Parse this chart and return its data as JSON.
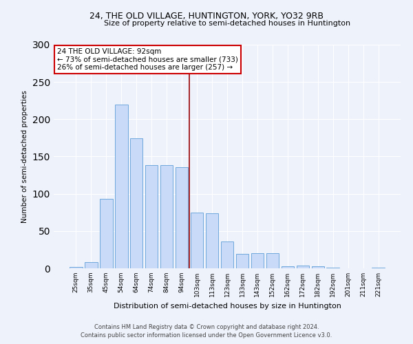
{
  "title": "24, THE OLD VILLAGE, HUNTINGTON, YORK, YO32 9RB",
  "subtitle": "Size of property relative to semi-detached houses in Huntington",
  "xlabel": "Distribution of semi-detached houses by size in Huntington",
  "ylabel": "Number of semi-detached properties",
  "categories": [
    "25sqm",
    "35sqm",
    "45sqm",
    "54sqm",
    "64sqm",
    "74sqm",
    "84sqm",
    "94sqm",
    "103sqm",
    "113sqm",
    "123sqm",
    "133sqm",
    "143sqm",
    "152sqm",
    "162sqm",
    "172sqm",
    "182sqm",
    "192sqm",
    "201sqm",
    "211sqm",
    "221sqm"
  ],
  "values": [
    2,
    8,
    93,
    220,
    174,
    138,
    138,
    136,
    75,
    74,
    36,
    19,
    20,
    20,
    3,
    4,
    3,
    1,
    0,
    0,
    1
  ],
  "bar_color": "#c9daf8",
  "bar_edge_color": "#6fa8dc",
  "vline_color": "#990000",
  "annotation_line1": "24 THE OLD VILLAGE: 92sqm",
  "annotation_line2": "← 73% of semi-detached houses are smaller (733)",
  "annotation_line3": "26% of semi-detached houses are larger (257) →",
  "annotation_box_color": "#ffffff",
  "annotation_box_edge": "#cc0000",
  "footer1": "Contains HM Land Registry data © Crown copyright and database right 2024.",
  "footer2": "Contains public sector information licensed under the Open Government Licence v3.0.",
  "bg_color": "#eef2fb",
  "ylim": [
    0,
    300
  ],
  "yticks": [
    0,
    50,
    100,
    150,
    200,
    250,
    300
  ]
}
